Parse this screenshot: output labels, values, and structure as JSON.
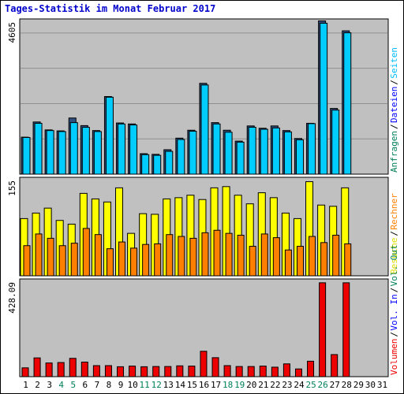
{
  "chart_data": {
    "type": "bar",
    "title": "Tages-Statistik im Monat Februar 2017",
    "x": [
      "1",
      "2",
      "3",
      "4",
      "5",
      "6",
      "7",
      "8",
      "9",
      "10",
      "11",
      "12",
      "13",
      "14",
      "15",
      "16",
      "17",
      "18",
      "19",
      "20",
      "21",
      "22",
      "23",
      "24",
      "25",
      "26",
      "27",
      "28",
      "29",
      "30",
      "31"
    ],
    "weekend_days": [
      "4",
      "5",
      "11",
      "12",
      "18",
      "19",
      "25",
      "26"
    ],
    "colors": {
      "panel_bg": "#c0c0c0",
      "hits": "#2f4f7f",
      "files": "#00ccff",
      "pages": "#00ccff",
      "visits": "#ffff00",
      "sites": "#ff8000",
      "volume": "#ee0000",
      "weekday_label": "#000000",
      "weekend_label": "#00805a",
      "title": "#0000cc"
    },
    "panels": [
      {
        "max_label": "4605",
        "ylim": [
          0,
          4605
        ],
        "side_labels": [
          {
            "text": "Anfragen",
            "color": "#00805a"
          },
          {
            "text": "Dateien",
            "color": "#0000ff"
          },
          {
            "text": "Seiten",
            "color": "#00bbff"
          }
        ],
        "series": [
          {
            "name": "Anfragen",
            "values": [
              1120,
              1580,
              1340,
              1310,
              1700,
              1470,
              1320,
              2350,
              1550,
              1520,
              620,
              600,
              740,
              1090,
              1330,
              2750,
              1560,
              1330,
              1000,
              1460,
              1390,
              1460,
              1320,
              1080,
              1540,
              4640,
              1990,
              4340,
              0,
              0,
              0
            ]
          },
          {
            "name": "Dateien",
            "values": [
              1110,
              1540,
              1320,
              1290,
              1560,
              1420,
              1290,
              2330,
              1520,
              1490,
              590,
              570,
              690,
              1050,
              1300,
              2700,
              1520,
              1270,
              970,
              1420,
              1360,
              1400,
              1280,
              1040,
              1530,
              4570,
              1940,
              4280,
              0,
              0,
              0
            ]
          },
          {
            "name": "Seiten",
            "values": [
              1110,
              1540,
              1320,
              1290,
              1560,
              1420,
              1290,
              2330,
              1520,
              1490,
              590,
              570,
              690,
              1050,
              1300,
              2700,
              1520,
              1270,
              970,
              1420,
              1360,
              1400,
              1280,
              1040,
              1530,
              4570,
              1940,
              4280,
              0,
              0,
              0
            ]
          }
        ]
      },
      {
        "max_label": "155",
        "ylim": [
          0,
          155
        ],
        "side_labels": [
          {
            "text": "Besuche",
            "color": "#dddd00"
          },
          {
            "text": "Rechner",
            "color": "#ff8000"
          }
        ],
        "series": [
          {
            "name": "Besuche",
            "values": [
              93,
              102,
              110,
              90,
              84,
              134,
              125,
              120,
              143,
              69,
              101,
              100,
              125,
              127,
              131,
              124,
              143,
              145,
              131,
              117,
              135,
              127,
              102,
              93,
              153,
              115,
              113,
              143,
              0,
              0,
              0
            ]
          },
          {
            "name": "Rechner",
            "values": [
              49,
              68,
              61,
              49,
              53,
              77,
              67,
              44,
              55,
              45,
              51,
              52,
              67,
              64,
              61,
              70,
              74,
              69,
              66,
              48,
              68,
              62,
              42,
              48,
              64,
              54,
              66,
              52,
              0,
              0,
              0
            ]
          }
        ]
      },
      {
        "max_label": "428.09",
        "ylim": [
          0,
          428.09
        ],
        "side_labels": [
          {
            "text": "Volumen",
            "color": "#ee0000"
          },
          {
            "text": "Vol. In",
            "color": "#0000ff"
          },
          {
            "text": "Vol. Out",
            "color": "#00805a"
          }
        ],
        "series": [
          {
            "name": "Volumen",
            "values": [
              40,
              85,
              62,
              64,
              83,
              66,
              50,
              50,
              45,
              48,
              45,
              46,
              46,
              49,
              48,
              115,
              86,
              50,
              46,
              46,
              48,
              43,
              58,
              35,
              70,
              425,
              100,
              425,
              0,
              0,
              0
            ]
          }
        ]
      }
    ]
  }
}
